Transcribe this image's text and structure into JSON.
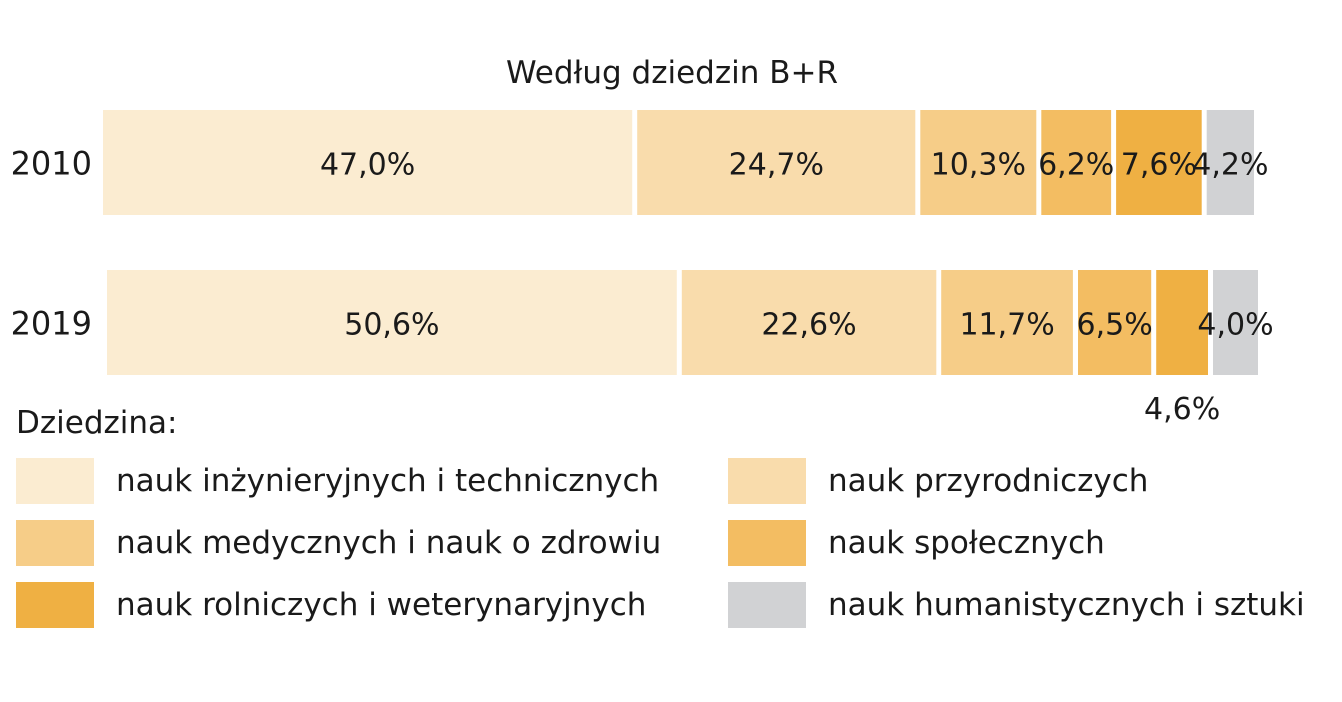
{
  "chart_data": {
    "type": "bar",
    "orientation": "horizontal",
    "stacked": true,
    "title": "Według dziedzin B+R",
    "categories": [
      "2010",
      "2019"
    ],
    "series": [
      {
        "name": "nauk inżynieryjnych i technicznych",
        "color": "#fbecd1",
        "values": [
          47.0,
          50.6
        ],
        "labels": [
          "47,0%",
          "50,6%"
        ]
      },
      {
        "name": "nauk przyrodniczych",
        "color": "#f9dcac",
        "values": [
          24.7,
          22.6
        ],
        "labels": [
          "24,7%",
          "22,6%"
        ]
      },
      {
        "name": "nauk medycznych i nauk o zdrowiu",
        "color": "#f6cd88",
        "values": [
          10.3,
          11.7
        ],
        "labels": [
          "10,3%",
          "11,7%"
        ]
      },
      {
        "name": "nauk społecznych",
        "color": "#f3bd62",
        "values": [
          6.2,
          6.5
        ],
        "labels": [
          "6,2%",
          "6,5%"
        ]
      },
      {
        "name": "nauk rolniczych i weterynaryjnych",
        "color": "#efb043",
        "values": [
          7.6,
          4.6
        ],
        "labels": [
          "7,6%",
          "4,6%"
        ]
      },
      {
        "name": "nauk humanistycznych i sztuki",
        "color": "#d1d2d4",
        "values": [
          4.2,
          4.0
        ],
        "labels": [
          "4,2%",
          "4,0%"
        ]
      }
    ],
    "xlim": [
      0,
      100
    ],
    "grid": false,
    "legend_title": "Dziedzina:",
    "legend_placement": "bottom"
  }
}
